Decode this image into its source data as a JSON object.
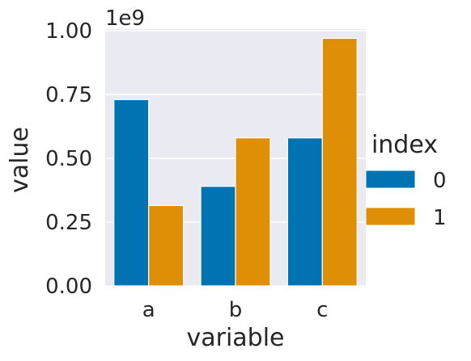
{
  "chart_data": {
    "type": "bar",
    "categories": [
      "a",
      "b",
      "c"
    ],
    "series": [
      {
        "name": "0",
        "values": [
          730000000,
          390000000,
          580000000
        ],
        "color": "#0173b2"
      },
      {
        "name": "1",
        "values": [
          315000000,
          580000000,
          970000000
        ],
        "color": "#de8f05"
      }
    ],
    "xlabel": "variable",
    "ylabel": "value",
    "ylim": [
      0,
      1000000000.0
    ],
    "yticks": [
      "0.00",
      "0.25",
      "0.50",
      "0.75",
      "1.00"
    ],
    "y_offset_label": "1e9",
    "legend": {
      "title": "index",
      "placement": "right"
    },
    "grid": true,
    "background": "#eaeaf2"
  }
}
